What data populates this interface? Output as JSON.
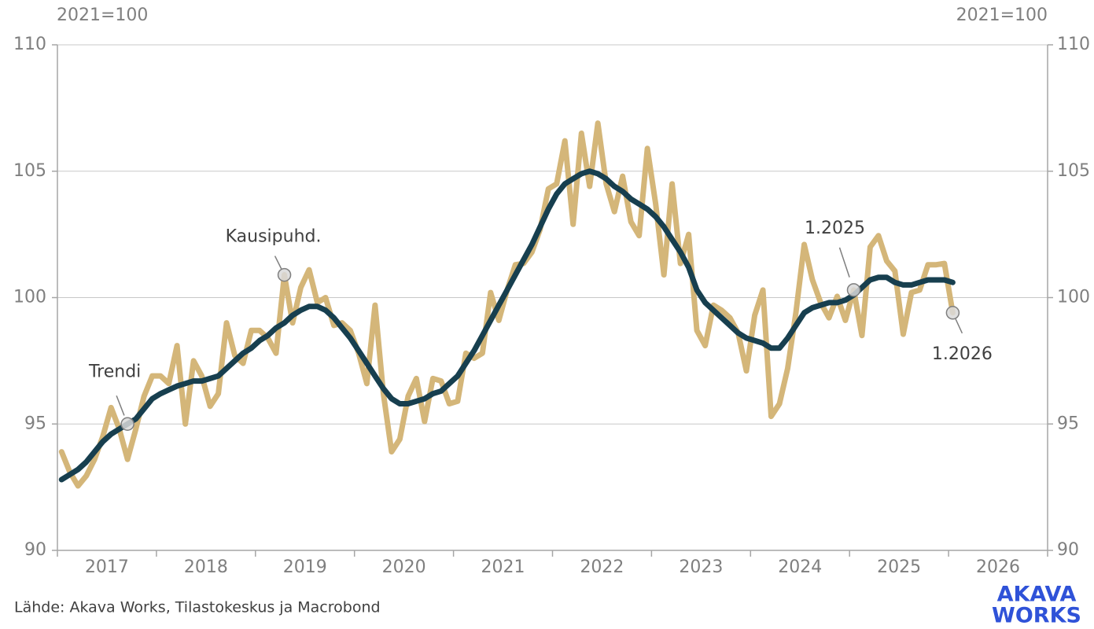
{
  "chart_data": {
    "type": "line",
    "y_label": "2021=100",
    "y2_label": "2021=100",
    "x": [
      2017.042,
      2017.125,
      2017.208,
      2017.292,
      2017.375,
      2017.458,
      2017.542,
      2017.625,
      2017.708,
      2017.792,
      2017.875,
      2017.958,
      2018.042,
      2018.125,
      2018.208,
      2018.292,
      2018.375,
      2018.458,
      2018.542,
      2018.625,
      2018.708,
      2018.792,
      2018.875,
      2018.958,
      2019.042,
      2019.125,
      2019.208,
      2019.292,
      2019.375,
      2019.458,
      2019.542,
      2019.625,
      2019.708,
      2019.792,
      2019.875,
      2019.958,
      2020.042,
      2020.125,
      2020.208,
      2020.292,
      2020.375,
      2020.458,
      2020.542,
      2020.625,
      2020.708,
      2020.792,
      2020.875,
      2020.958,
      2021.042,
      2021.125,
      2021.208,
      2021.292,
      2021.375,
      2021.458,
      2021.542,
      2021.625,
      2021.708,
      2021.792,
      2021.875,
      2021.958,
      2022.042,
      2022.125,
      2022.208,
      2022.292,
      2022.375,
      2022.458,
      2022.542,
      2022.625,
      2022.708,
      2022.792,
      2022.875,
      2022.958,
      2023.042,
      2023.125,
      2023.208,
      2023.292,
      2023.375,
      2023.458,
      2023.542,
      2023.625,
      2023.708,
      2023.792,
      2023.875,
      2023.958,
      2024.042,
      2024.125,
      2024.208,
      2024.292,
      2024.375,
      2024.458,
      2024.542,
      2024.625,
      2024.708,
      2024.792,
      2024.875,
      2024.958,
      2025.042,
      2025.125,
      2025.208,
      2025.292,
      2025.375,
      2025.458,
      2025.542,
      2025.625,
      2025.708,
      2025.792,
      2025.875,
      2025.958,
      2026.042
    ],
    "series": [
      {
        "name": "Kausipuhd.",
        "color": "#d4b679",
        "values": [
          93.9,
          93.1,
          92.55,
          92.95,
          93.6,
          94.5,
          95.65,
          94.8,
          93.6,
          94.8,
          96.1,
          96.9,
          96.9,
          96.6,
          98.1,
          95.0,
          97.5,
          96.9,
          95.7,
          96.2,
          99.0,
          97.7,
          97.4,
          98.7,
          98.7,
          98.4,
          97.8,
          100.9,
          99.0,
          100.4,
          101.1,
          99.8,
          100.0,
          98.9,
          99.0,
          98.7,
          97.8,
          96.6,
          99.7,
          96.2,
          93.9,
          94.4,
          96.1,
          96.8,
          95.1,
          96.8,
          96.7,
          95.8,
          95.9,
          97.8,
          97.6,
          97.8,
          100.2,
          99.1,
          100.3,
          101.3,
          101.35,
          101.8,
          102.7,
          104.3,
          104.5,
          106.2,
          102.9,
          106.5,
          104.4,
          106.9,
          104.5,
          103.4,
          104.8,
          103.0,
          102.45,
          105.9,
          103.7,
          100.9,
          104.5,
          101.35,
          102.5,
          98.7,
          98.1,
          99.7,
          99.5,
          99.2,
          98.6,
          97.1,
          99.3,
          100.3,
          95.3,
          95.8,
          97.2,
          99.4,
          102.1,
          100.7,
          99.8,
          99.2,
          100.05,
          99.1,
          100.3,
          98.5,
          102.0,
          102.45,
          101.45,
          101.05,
          98.55,
          100.2,
          100.3,
          101.3,
          101.3,
          101.35,
          99.4
        ]
      },
      {
        "name": "Trendi",
        "color": "#173f4f",
        "values": [
          92.8,
          93.0,
          93.2,
          93.5,
          93.9,
          94.3,
          94.6,
          94.8,
          95.0,
          95.2,
          95.6,
          96.0,
          96.2,
          96.35,
          96.5,
          96.6,
          96.7,
          96.7,
          96.8,
          96.9,
          97.2,
          97.5,
          97.8,
          98.0,
          98.3,
          98.5,
          98.8,
          99.0,
          99.3,
          99.5,
          99.65,
          99.65,
          99.5,
          99.2,
          98.8,
          98.4,
          97.9,
          97.4,
          96.9,
          96.4,
          96.0,
          95.8,
          95.8,
          95.9,
          96.0,
          96.2,
          96.3,
          96.6,
          96.9,
          97.4,
          97.9,
          98.5,
          99.1,
          99.7,
          100.3,
          100.9,
          101.5,
          102.1,
          102.8,
          103.5,
          104.1,
          104.5,
          104.7,
          104.9,
          105.0,
          104.9,
          104.7,
          104.4,
          104.2,
          103.9,
          103.7,
          103.5,
          103.2,
          102.8,
          102.3,
          101.8,
          101.2,
          100.3,
          99.8,
          99.5,
          99.2,
          98.9,
          98.6,
          98.4,
          98.3,
          98.2,
          98.0,
          98.0,
          98.4,
          98.9,
          99.4,
          99.6,
          99.7,
          99.8,
          99.8,
          99.9,
          100.1,
          100.4,
          100.7,
          100.8,
          100.8,
          100.6,
          100.5,
          100.5,
          100.6,
          100.7,
          100.7,
          100.7,
          100.6
        ]
      }
    ],
    "annotations": [
      "Trendi",
      "Kausipuhd.",
      "1.2025",
      "1.2026"
    ],
    "xlim": [
      2017,
      2027
    ],
    "xticks": [
      2017,
      2018,
      2019,
      2020,
      2021,
      2022,
      2023,
      2024,
      2025,
      2026,
      2027
    ],
    "year_labels": [
      "2017",
      "2018",
      "2019",
      "2020",
      "2021",
      "2022",
      "2023",
      "2024",
      "2025",
      "2026"
    ],
    "ylim": [
      90,
      110
    ],
    "yticks": [
      90,
      95,
      100,
      105,
      110
    ],
    "y2lim": [
      90,
      110
    ],
    "y2ticks": [
      90,
      95,
      100,
      105,
      110
    ],
    "grid": true,
    "source": "Lähde: Akava Works, Tilastokeskus ja Macrobond",
    "logo": [
      "AKAVA",
      "WORKS"
    ]
  }
}
